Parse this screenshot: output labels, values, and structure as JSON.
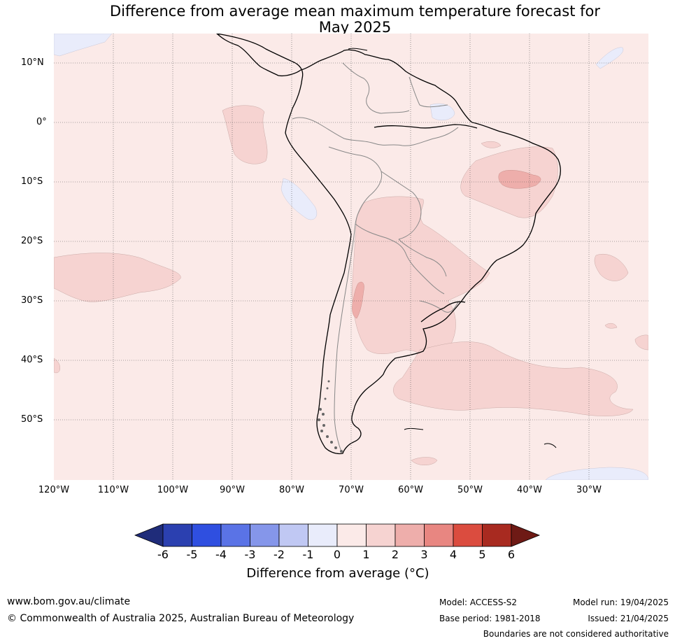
{
  "title_line1": "Difference from average mean maximum temperature forecast for",
  "title_line2": "May 2025",
  "map": {
    "lat_labels": [
      "10°N",
      "0°",
      "10°S",
      "20°S",
      "30°S",
      "40°S",
      "50°S"
    ],
    "lon_labels": [
      "120°W",
      "110°W",
      "100°W",
      "90°W",
      "80°W",
      "70°W",
      "60°W",
      "50°W",
      "40°W",
      "30°W"
    ],
    "background_color": "#fbeae8"
  },
  "colorbar": {
    "ticks": [
      "-6",
      "-5",
      "-4",
      "-3",
      "-2",
      "-1",
      "0",
      "1",
      "2",
      "3",
      "4",
      "5",
      "6"
    ],
    "label": "Difference from average (°C)",
    "colors": [
      "#1f2c7a",
      "#2b40b0",
      "#2f4fe0",
      "#5a73e6",
      "#8596ea",
      "#c0c8f3",
      "#e9ecfb",
      "#fbeae8",
      "#f6d3d1",
      "#eeaeab",
      "#e88681",
      "#db4c3f",
      "#a82a20",
      "#6e1a15"
    ]
  },
  "footer": {
    "url": "www.bom.gov.au/climate",
    "copyright": "© Commonwealth of Australia 2025, Australian Bureau of Meteorology",
    "model": "Model: ACCESS-S2",
    "base_period": "Base period: 1981-2018",
    "model_run": "Model run: 19/04/2025",
    "issued": "Issued: 21/04/2025",
    "disclaimer": "Boundaries are not considered authoritative"
  }
}
